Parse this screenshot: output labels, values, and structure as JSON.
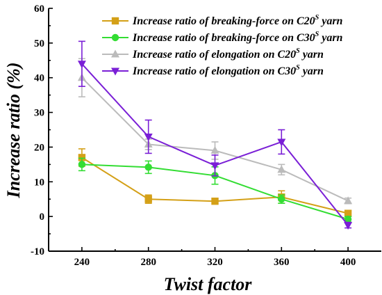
{
  "chart_data": {
    "type": "line",
    "x": [
      240,
      280,
      320,
      360,
      400
    ],
    "xlabel": "Twist factor",
    "ylabel": "Increase ratio (%)",
    "xlim": [
      220,
      420
    ],
    "ylim": [
      -10,
      60
    ],
    "xticks": [
      "240",
      "280",
      "320",
      "360",
      "400"
    ],
    "yticks": [
      "-10",
      "0",
      "10",
      "20",
      "30",
      "40",
      "50",
      "60"
    ],
    "legend_position": "top-right",
    "grid": false,
    "series": [
      {
        "name": "Increase ratio of breaking-force on C20",
        "name_sup": "S",
        "name_suffix": " yarn",
        "color": "#d4a017",
        "marker": "square",
        "values": [
          17.0,
          5.0,
          4.4,
          5.6,
          0.9
        ],
        "errors": [
          2.5,
          1.2,
          0.8,
          1.8,
          0.8
        ]
      },
      {
        "name": "Increase ratio of breaking-force on C30",
        "name_sup": "S",
        "name_suffix": " yarn",
        "color": "#33dd33",
        "marker": "circle",
        "values": [
          15.0,
          14.2,
          11.8,
          5.0,
          -0.8
        ],
        "errors": [
          1.8,
          1.8,
          2.5,
          1.2,
          0.8
        ]
      },
      {
        "name": "Increase ratio of elongation on C20",
        "name_sup": "S",
        "name_suffix": " yarn",
        "color": "#bbbbbb",
        "marker": "triangle-up",
        "values": [
          40.0,
          20.8,
          19.0,
          13.5,
          4.5
        ],
        "errors": [
          5.5,
          1.5,
          2.5,
          1.5,
          0.8
        ]
      },
      {
        "name": "Increase ratio of elongation on C30",
        "name_sup": "S",
        "name_suffix": " yarn",
        "color": "#7a1fd6",
        "marker": "triangle-down",
        "values": [
          44.0,
          23.0,
          14.7,
          21.5,
          -2.5
        ],
        "errors": [
          6.5,
          4.8,
          3.0,
          3.5,
          0.8
        ]
      }
    ]
  }
}
